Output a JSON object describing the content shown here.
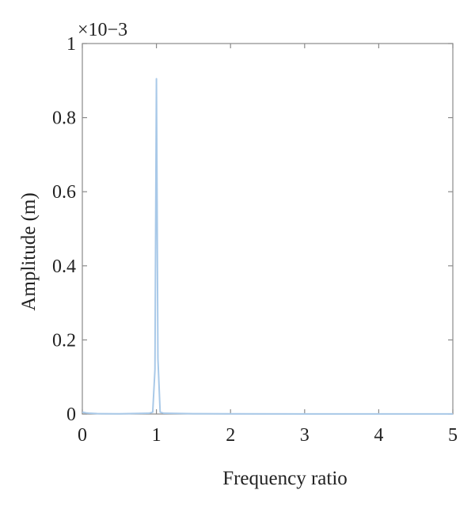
{
  "chart_data": {
    "type": "line",
    "title": "",
    "xlabel": "Frequency ratio",
    "ylabel": "Amplitude (m)",
    "y_exponent_label": "×10−3",
    "xlim": [
      0,
      5
    ],
    "ylim": [
      0,
      1
    ],
    "x_ticks": [
      0,
      1,
      2,
      3,
      4,
      5
    ],
    "x_tick_labels": [
      "0",
      "1",
      "2",
      "3",
      "4",
      "5"
    ],
    "y_ticks": [
      0,
      0.2,
      0.4,
      0.6,
      0.8,
      1
    ],
    "y_tick_labels": [
      "0",
      "0.2",
      "0.4",
      "0.6",
      "0.8",
      "1"
    ],
    "grid": false,
    "line_color": "#a9c9e8",
    "series": [
      {
        "x": [
          0,
          0.05,
          0.1,
          0.2,
          0.5,
          0.9,
          0.95,
          0.98,
          1.0,
          1.02,
          1.05,
          1.1,
          1.5,
          2.0,
          3.0,
          4.0,
          5.0
        ],
        "values": [
          0.005,
          0.003,
          0.002,
          0.001,
          0.0005,
          0.002,
          0.005,
          0.12,
          0.905,
          0.15,
          0.005,
          0.002,
          0.0008,
          0.0005,
          0.0003,
          0.0002,
          0.0002
        ]
      }
    ]
  }
}
